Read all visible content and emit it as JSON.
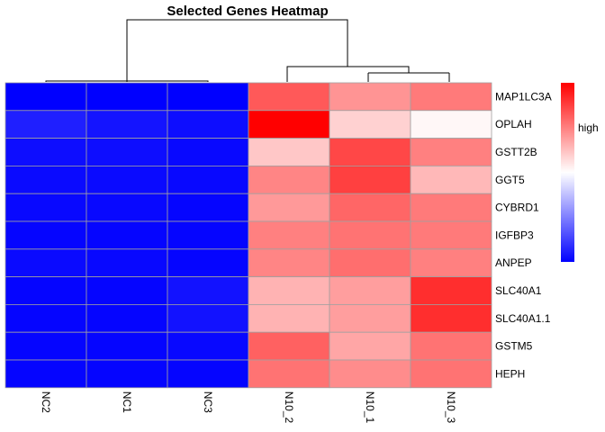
{
  "chart_data": {
    "type": "heatmap",
    "title": "Selected Genes Heatmap",
    "columns": [
      "NC2",
      "NC1",
      "NC3",
      "N10_2",
      "N10_1",
      "N10_3"
    ],
    "rows": [
      "MAP1LC3A",
      "OPLAH",
      "GSTT2B",
      "GGT5",
      "CYBRD1",
      "IGFBP3",
      "ANPEP",
      "SLC40A1",
      "SLC40A1.1",
      "GSTM5",
      "HEPH"
    ],
    "values": [
      [
        -1.0,
        -1.0,
        -1.0,
        0.65,
        0.42,
        0.52
      ],
      [
        -0.88,
        -0.92,
        -0.95,
        1.0,
        0.18,
        0.03
      ],
      [
        -0.95,
        -0.95,
        -0.97,
        0.22,
        0.72,
        0.5
      ],
      [
        -0.96,
        -0.96,
        -0.97,
        0.48,
        0.75,
        0.28
      ],
      [
        -0.97,
        -0.97,
        -0.98,
        0.4,
        0.6,
        0.52
      ],
      [
        -0.98,
        -0.98,
        -0.98,
        0.5,
        0.55,
        0.52
      ],
      [
        -0.96,
        -0.97,
        -0.98,
        0.48,
        0.57,
        0.5
      ],
      [
        -0.98,
        -0.98,
        -0.93,
        0.3,
        0.38,
        0.82
      ],
      [
        -0.98,
        -0.98,
        -0.93,
        0.3,
        0.38,
        0.82
      ],
      [
        -0.98,
        -0.98,
        -0.97,
        0.62,
        0.35,
        0.55
      ],
      [
        -0.98,
        -0.98,
        -0.98,
        0.55,
        0.45,
        0.55
      ]
    ],
    "color_scale": {
      "low": "#0000ff",
      "mid": "#ffffff",
      "high": "#ff0000"
    },
    "legend": {
      "label": "high",
      "position": "right"
    },
    "column_dendrogram": true,
    "row_dendrogram": false,
    "grid": true
  }
}
